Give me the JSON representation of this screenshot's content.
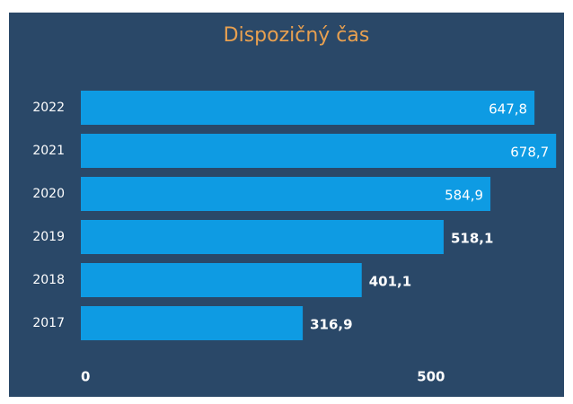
{
  "chart_data": {
    "type": "hbar",
    "title": "Dispozičný čas",
    "categories": [
      "2022",
      "2021",
      "2020",
      "2019",
      "2018",
      "2017"
    ],
    "values": [
      647.8,
      678.7,
      584.9,
      518.1,
      401.1,
      316.9
    ],
    "value_labels": [
      "647,8",
      "678,7",
      "584,9",
      "518,1",
      "401,1",
      "316,9"
    ],
    "color": "#0e9be3",
    "xlim": [
      0,
      690
    ],
    "xticks": [
      0,
      500
    ]
  }
}
